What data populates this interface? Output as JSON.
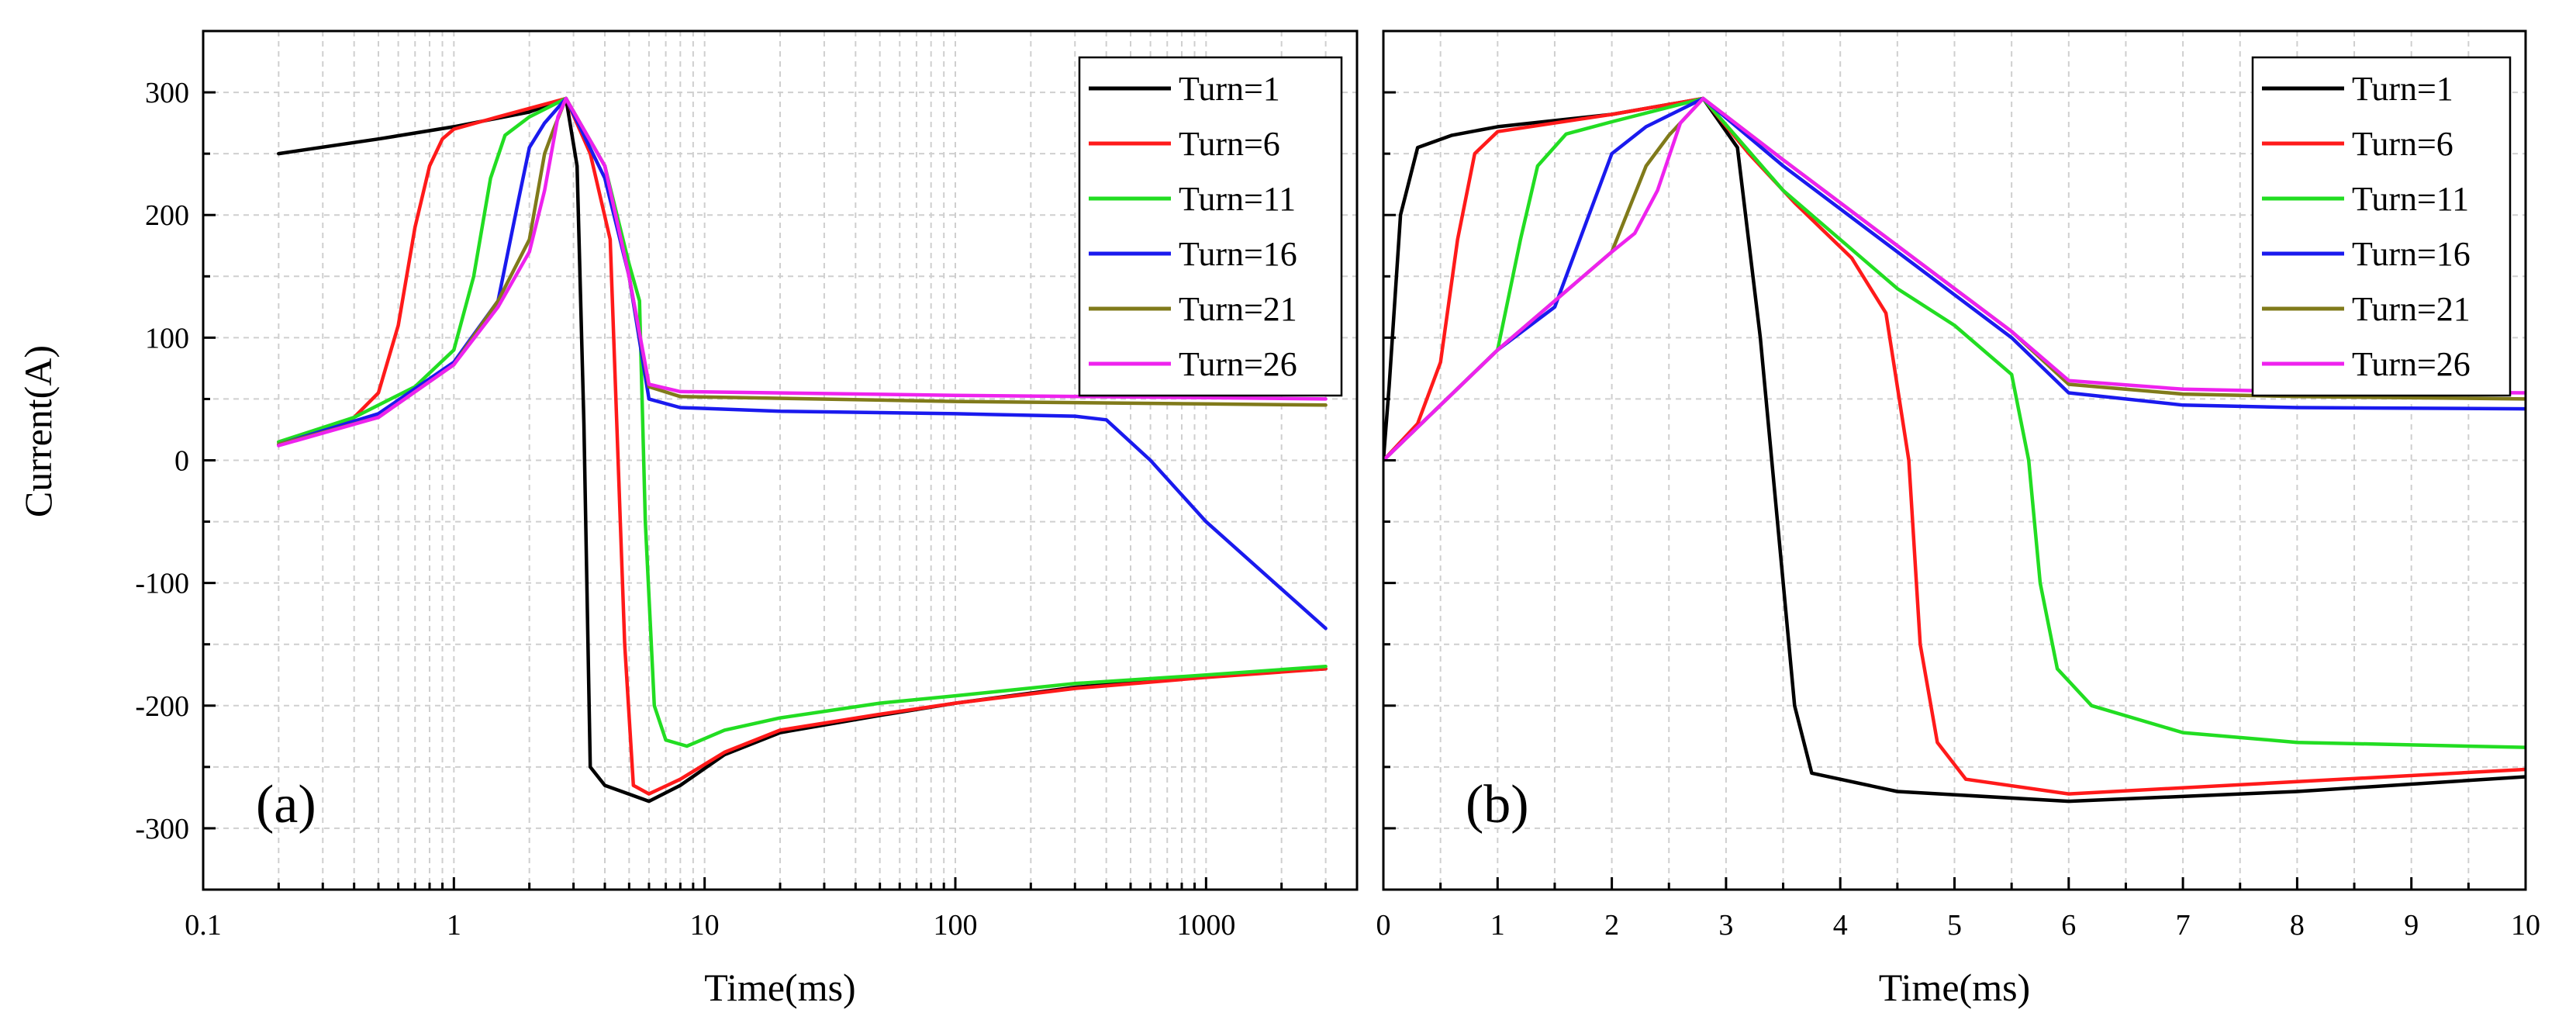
{
  "ylabel": "Current(A)",
  "chart_data": [
    {
      "type": "line",
      "panel_label": "(a)",
      "xlabel": "Time(ms)",
      "x_scale": "log",
      "xlim": [
        0.1,
        4000
      ],
      "ylim": [
        -350,
        350
      ],
      "x_ticks": [
        0.1,
        1,
        10,
        100,
        1000
      ],
      "x_tick_labels": [
        "0.1",
        "1",
        "10",
        "100",
        "1000"
      ],
      "y_ticks": [
        -300,
        -200,
        -100,
        0,
        100,
        200,
        300
      ],
      "y_tick_labels": [
        "-300",
        "-200",
        "-100",
        "0",
        "100",
        "200",
        "300"
      ],
      "grid": true,
      "legend_position": "top-right",
      "series": [
        {
          "name": "Turn=1",
          "color": "#000000",
          "points": [
            [
              0.2,
              250
            ],
            [
              0.5,
              262
            ],
            [
              1,
              272
            ],
            [
              2,
              284
            ],
            [
              2.8,
              295
            ],
            [
              3.1,
              240
            ],
            [
              3.3,
              30
            ],
            [
              3.5,
              -250
            ],
            [
              4,
              -265
            ],
            [
              6,
              -278
            ],
            [
              8,
              -265
            ],
            [
              12,
              -240
            ],
            [
              20,
              -222
            ],
            [
              50,
              -208
            ],
            [
              100,
              -198
            ],
            [
              300,
              -185
            ],
            [
              1000,
              -176
            ],
            [
              3000,
              -170
            ]
          ]
        },
        {
          "name": "Turn=6",
          "color": "#ff1a1a",
          "points": [
            [
              0.2,
              15
            ],
            [
              0.3,
              25
            ],
            [
              0.4,
              35
            ],
            [
              0.5,
              55
            ],
            [
              0.6,
              110
            ],
            [
              0.7,
              190
            ],
            [
              0.8,
              240
            ],
            [
              0.9,
              262
            ],
            [
              1,
              270
            ],
            [
              1.5,
              280
            ],
            [
              2.8,
              295
            ],
            [
              3.5,
              250
            ],
            [
              4.2,
              180
            ],
            [
              4.8,
              -150
            ],
            [
              5.2,
              -265
            ],
            [
              6,
              -272
            ],
            [
              8,
              -260
            ],
            [
              12,
              -238
            ],
            [
              20,
              -220
            ],
            [
              50,
              -207
            ],
            [
              100,
              -198
            ],
            [
              300,
              -186
            ],
            [
              1000,
              -177
            ],
            [
              3000,
              -170
            ]
          ]
        },
        {
          "name": "Turn=11",
          "color": "#22dd22",
          "points": [
            [
              0.2,
              15
            ],
            [
              0.4,
              35
            ],
            [
              0.7,
              60
            ],
            [
              1,
              90
            ],
            [
              1.2,
              150
            ],
            [
              1.4,
              230
            ],
            [
              1.6,
              265
            ],
            [
              2,
              280
            ],
            [
              2.8,
              295
            ],
            [
              4,
              240
            ],
            [
              5,
              160
            ],
            [
              5.5,
              130
            ],
            [
              5.8,
              -50
            ],
            [
              6.3,
              -200
            ],
            [
              7,
              -228
            ],
            [
              8.5,
              -233
            ],
            [
              12,
              -220
            ],
            [
              20,
              -210
            ],
            [
              50,
              -198
            ],
            [
              100,
              -192
            ],
            [
              300,
              -182
            ],
            [
              1000,
              -175
            ],
            [
              3000,
              -168
            ]
          ]
        },
        {
          "name": "Turn=16",
          "color": "#1a1aee",
          "points": [
            [
              0.2,
              13
            ],
            [
              0.5,
              38
            ],
            [
              1,
              80
            ],
            [
              1.5,
              130
            ],
            [
              1.8,
              210
            ],
            [
              2,
              255
            ],
            [
              2.3,
              275
            ],
            [
              2.8,
              295
            ],
            [
              4,
              230
            ],
            [
              5,
              150
            ],
            [
              6,
              50
            ],
            [
              8,
              43
            ],
            [
              20,
              40
            ],
            [
              100,
              38
            ],
            [
              300,
              36
            ],
            [
              400,
              33
            ],
            [
              600,
              0
            ],
            [
              1000,
              -50
            ],
            [
              3000,
              -137
            ]
          ]
        },
        {
          "name": "Turn=21",
          "color": "#807a1a",
          "points": [
            [
              0.2,
              13
            ],
            [
              0.5,
              35
            ],
            [
              1,
              78
            ],
            [
              1.5,
              130
            ],
            [
              2,
              180
            ],
            [
              2.3,
              250
            ],
            [
              2.5,
              270
            ],
            [
              2.8,
              295
            ],
            [
              4,
              240
            ],
            [
              5,
              150
            ],
            [
              6,
              60
            ],
            [
              8,
              52
            ],
            [
              100,
              48
            ],
            [
              1000,
              46
            ],
            [
              3000,
              45
            ]
          ]
        },
        {
          "name": "Turn=26",
          "color": "#ee22ee",
          "points": [
            [
              0.2,
              12
            ],
            [
              0.5,
              35
            ],
            [
              1,
              78
            ],
            [
              1.5,
              125
            ],
            [
              2,
              170
            ],
            [
              2.3,
              220
            ],
            [
              2.6,
              280
            ],
            [
              2.8,
              295
            ],
            [
              4,
              240
            ],
            [
              5,
              150
            ],
            [
              6,
              62
            ],
            [
              8,
              56
            ],
            [
              100,
              53
            ],
            [
              1000,
              51
            ],
            [
              3000,
              50
            ]
          ]
        }
      ]
    },
    {
      "type": "line",
      "panel_label": "(b)",
      "xlabel": "Time(ms)",
      "x_scale": "linear",
      "xlim": [
        0,
        10
      ],
      "ylim": [
        -350,
        350
      ],
      "x_ticks": [
        0,
        1,
        2,
        3,
        4,
        5,
        6,
        7,
        8,
        9,
        10
      ],
      "x_tick_labels": [
        "0",
        "1",
        "2",
        "3",
        "4",
        "5",
        "6",
        "7",
        "8",
        "9",
        "10"
      ],
      "y_ticks": [
        -300,
        -200,
        -100,
        0,
        100,
        200,
        300
      ],
      "y_tick_labels": [
        "-300",
        "-200",
        "-100",
        "0",
        "100",
        "200",
        "300"
      ],
      "grid": true,
      "legend_position": "top-right",
      "series": [
        {
          "name": "Turn=1",
          "color": "#000000",
          "points": [
            [
              0,
              0
            ],
            [
              0.05,
              60
            ],
            [
              0.15,
              200
            ],
            [
              0.3,
              255
            ],
            [
              0.6,
              265
            ],
            [
              1,
              272
            ],
            [
              2,
              282
            ],
            [
              2.8,
              295
            ],
            [
              3.1,
              255
            ],
            [
              3.3,
              100
            ],
            [
              3.5,
              -100
            ],
            [
              3.6,
              -200
            ],
            [
              3.75,
              -255
            ],
            [
              4.5,
              -270
            ],
            [
              6,
              -278
            ],
            [
              8,
              -270
            ],
            [
              10,
              -258
            ]
          ]
        },
        {
          "name": "Turn=6",
          "color": "#ff1a1a",
          "points": [
            [
              0,
              0
            ],
            [
              0.3,
              30
            ],
            [
              0.5,
              80
            ],
            [
              0.65,
              180
            ],
            [
              0.8,
              250
            ],
            [
              1,
              268
            ],
            [
              2,
              282
            ],
            [
              2.8,
              295
            ],
            [
              3.2,
              250
            ],
            [
              3.6,
              210
            ],
            [
              4.1,
              165
            ],
            [
              4.4,
              120
            ],
            [
              4.6,
              0
            ],
            [
              4.7,
              -150
            ],
            [
              4.85,
              -230
            ],
            [
              5.1,
              -260
            ],
            [
              6,
              -272
            ],
            [
              8,
              -262
            ],
            [
              10,
              -252
            ]
          ]
        },
        {
          "name": "Turn=11",
          "color": "#22dd22",
          "points": [
            [
              0,
              0
            ],
            [
              0.5,
              45
            ],
            [
              1,
              90
            ],
            [
              1.2,
              180
            ],
            [
              1.35,
              240
            ],
            [
              1.6,
              266
            ],
            [
              2,
              276
            ],
            [
              2.8,
              295
            ],
            [
              3.5,
              220
            ],
            [
              4.5,
              140
            ],
            [
              5,
              110
            ],
            [
              5.5,
              70
            ],
            [
              5.65,
              0
            ],
            [
              5.75,
              -100
            ],
            [
              5.9,
              -170
            ],
            [
              6.2,
              -200
            ],
            [
              7,
              -222
            ],
            [
              8,
              -230
            ],
            [
              10,
              -234
            ]
          ]
        },
        {
          "name": "Turn=16",
          "color": "#1a1aee",
          "points": [
            [
              0,
              0
            ],
            [
              0.5,
              45
            ],
            [
              1,
              90
            ],
            [
              1.5,
              125
            ],
            [
              1.8,
              200
            ],
            [
              2,
              250
            ],
            [
              2.3,
              272
            ],
            [
              2.8,
              295
            ],
            [
              3.5,
              240
            ],
            [
              4.5,
              170
            ],
            [
              5.5,
              100
            ],
            [
              6,
              55
            ],
            [
              7,
              45
            ],
            [
              8,
              43
            ],
            [
              10,
              42
            ]
          ]
        },
        {
          "name": "Turn=21",
          "color": "#807a1a",
          "points": [
            [
              0,
              0
            ],
            [
              0.5,
              45
            ],
            [
              1,
              90
            ],
            [
              1.5,
              130
            ],
            [
              2,
              170
            ],
            [
              2.3,
              240
            ],
            [
              2.5,
              265
            ],
            [
              2.8,
              295
            ],
            [
              3.5,
              245
            ],
            [
              4.5,
              175
            ],
            [
              5.5,
              105
            ],
            [
              6,
              62
            ],
            [
              7,
              54
            ],
            [
              8,
              52
            ],
            [
              10,
              50
            ]
          ]
        },
        {
          "name": "Turn=26",
          "color": "#ee22ee",
          "points": [
            [
              0,
              0
            ],
            [
              0.5,
              45
            ],
            [
              1,
              90
            ],
            [
              1.5,
              130
            ],
            [
              2,
              170
            ],
            [
              2.2,
              185
            ],
            [
              2.4,
              220
            ],
            [
              2.6,
              275
            ],
            [
              2.8,
              295
            ],
            [
              3.5,
              245
            ],
            [
              4.5,
              175
            ],
            [
              5.5,
              105
            ],
            [
              6,
              65
            ],
            [
              7,
              58
            ],
            [
              8,
              56
            ],
            [
              10,
              55
            ]
          ]
        }
      ]
    }
  ]
}
